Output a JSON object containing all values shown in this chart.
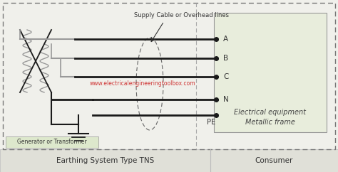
{
  "bg_color": "#f0f0eb",
  "line_color": "#1a1a1a",
  "gray_line": "#999999",
  "dashed_outer_color": "#777777",
  "consumer_box_color": "#e8eddc",
  "watermark_color": "#cc2222",
  "watermark_text": "www.electricalengineeringtoolbox.com",
  "title_text": "Earthing System Type TNS",
  "consumer_text": "Consumer",
  "generator_text": "Generator or Transformer",
  "equipment_text": "Electrical equipment\nMetallic frame",
  "supply_text": "Supply Cable or Overhead lines",
  "labels_abcn": [
    "A",
    "B",
    "C",
    "N"
  ],
  "pe_label": "PE",
  "bottom_band_color": "#e0e0d8",
  "bottom_band_edge": "#bbbbbb"
}
